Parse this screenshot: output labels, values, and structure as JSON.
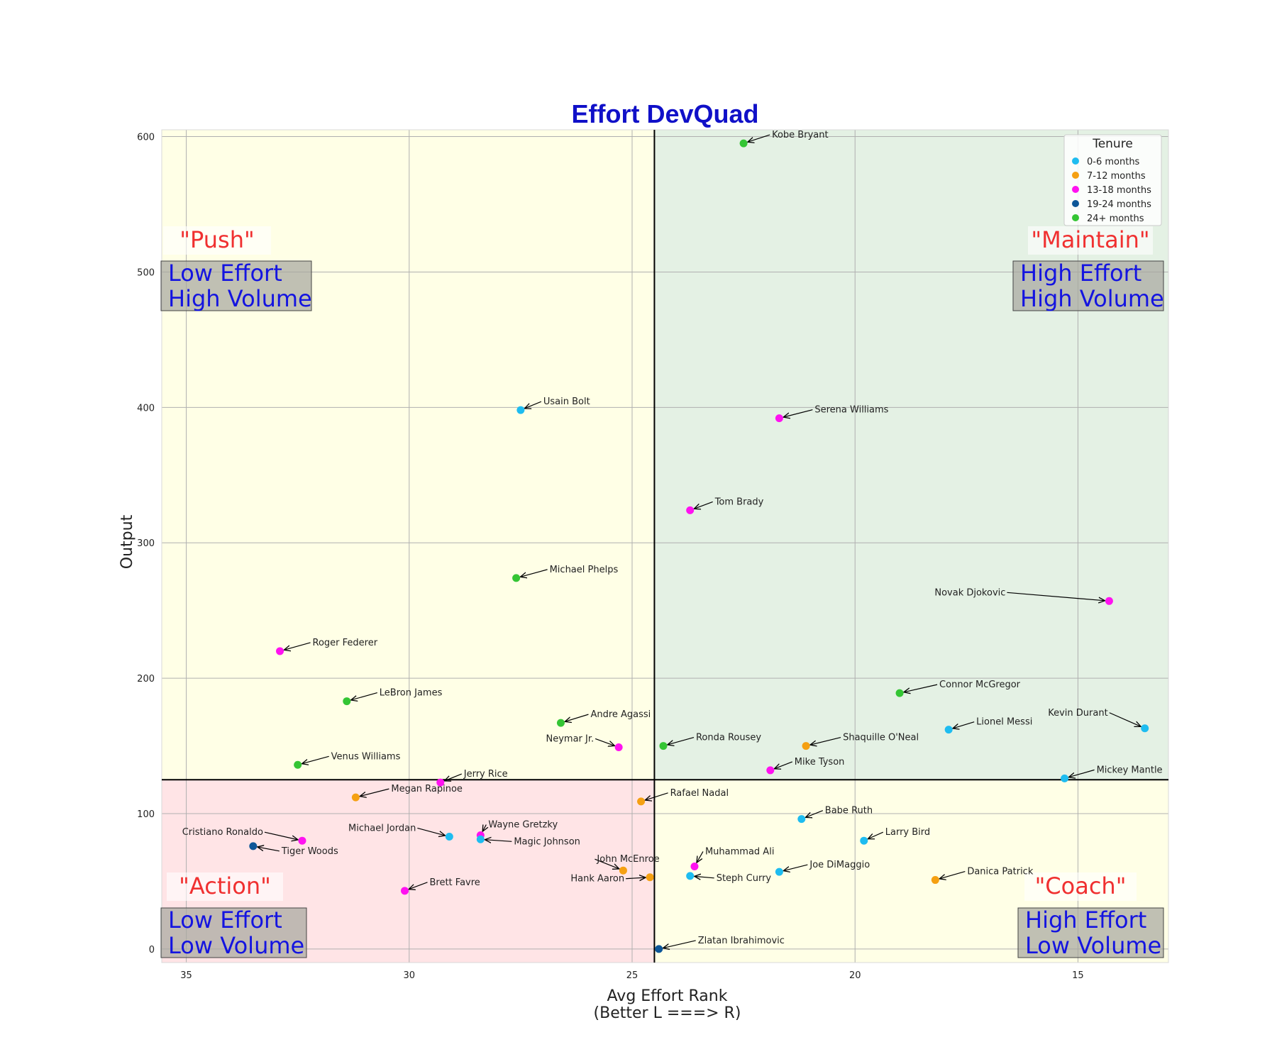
{
  "chart_data": {
    "type": "scatter",
    "title": "Effort DevQuad",
    "xlabel": "Avg Effort Rank\n(Better L ===> R)",
    "ylabel": "Output",
    "xlim": [
      35.55,
      12.97
    ],
    "ylim": [
      -10,
      605
    ],
    "x_inverted": true,
    "xticks": [
      35,
      30,
      25,
      20,
      15
    ],
    "yticks": [
      0,
      100,
      200,
      300,
      400,
      500,
      600
    ],
    "grid": true,
    "divider_x": 24.5,
    "divider_y": 125,
    "legend": {
      "title": "Tenure",
      "placement": "top-right",
      "entries": [
        {
          "label": "0-6 months",
          "color": "#1ebcf0"
        },
        {
          "label": "7-12 months",
          "color": "#f5a012"
        },
        {
          "label": "13-18 months",
          "color": "#ff12f0"
        },
        {
          "label": "19-24 months",
          "color": "#0d5698"
        },
        {
          "label": "24+ months",
          "color": "#34c534"
        }
      ]
    },
    "quadrants": [
      {
        "name": "top-left",
        "label": "\"Push\"",
        "desc": [
          "Low Effort",
          "High Volume"
        ],
        "fill": "#ffffe6"
      },
      {
        "name": "top-right",
        "label": "\"Maintain\"",
        "desc": [
          "High Effort",
          "High Volume"
        ],
        "fill": "#e4f1e4"
      },
      {
        "name": "bottom-left",
        "label": "\"Action\"",
        "desc": [
          "Low Effort",
          "Low Volume"
        ],
        "fill": "#ffe4e6"
      },
      {
        "name": "bottom-right",
        "label": "\"Coach\"",
        "desc": [
          "High Effort",
          "Low Volume"
        ],
        "fill": "#ffffe6"
      }
    ],
    "points": [
      {
        "name": "Kobe Bryant",
        "x": 22.5,
        "y": 595,
        "tenure": 4
      },
      {
        "name": "Usain Bolt",
        "x": 27.5,
        "y": 398,
        "tenure": 0
      },
      {
        "name": "Serena Williams",
        "x": 21.7,
        "y": 392,
        "tenure": 2
      },
      {
        "name": "Tom Brady",
        "x": 23.7,
        "y": 324,
        "tenure": 2
      },
      {
        "name": "Michael Phelps",
        "x": 27.6,
        "y": 274,
        "tenure": 4
      },
      {
        "name": "Novak Djokovic",
        "x": 14.3,
        "y": 257,
        "tenure": 2
      },
      {
        "name": "Roger Federer",
        "x": 32.9,
        "y": 220,
        "tenure": 2
      },
      {
        "name": "Connor McGregor",
        "x": 19.0,
        "y": 189,
        "tenure": 4
      },
      {
        "name": "LeBron James",
        "x": 31.4,
        "y": 183,
        "tenure": 4
      },
      {
        "name": "Andre Agassi",
        "x": 26.6,
        "y": 167,
        "tenure": 4
      },
      {
        "name": "Kevin Durant",
        "x": 13.5,
        "y": 163,
        "tenure": 0
      },
      {
        "name": "Lionel Messi",
        "x": 17.9,
        "y": 162,
        "tenure": 0
      },
      {
        "name": "Neymar Jr.",
        "x": 25.3,
        "y": 149,
        "tenure": 2
      },
      {
        "name": "Ronda Rousey",
        "x": 24.3,
        "y": 150,
        "tenure": 4
      },
      {
        "name": "Shaquille O'Neal",
        "x": 21.1,
        "y": 150,
        "tenure": 1
      },
      {
        "name": "Venus Williams",
        "x": 32.5,
        "y": 136,
        "tenure": 4
      },
      {
        "name": "Mike Tyson",
        "x": 21.9,
        "y": 132,
        "tenure": 2
      },
      {
        "name": "Mickey Mantle",
        "x": 15.3,
        "y": 126,
        "tenure": 0
      },
      {
        "name": "Jerry Rice",
        "x": 29.3,
        "y": 123,
        "tenure": 2
      },
      {
        "name": "Megan Rapinoe",
        "x": 31.2,
        "y": 112,
        "tenure": 1
      },
      {
        "name": "Rafael Nadal",
        "x": 24.8,
        "y": 109,
        "tenure": 1
      },
      {
        "name": "Babe Ruth",
        "x": 21.2,
        "y": 96,
        "tenure": 0
      },
      {
        "name": "Wayne Gretzky",
        "x": 28.4,
        "y": 84,
        "tenure": 2
      },
      {
        "name": "Michael Jordan",
        "x": 29.1,
        "y": 83,
        "tenure": 0
      },
      {
        "name": "Magic Johnson",
        "x": 28.4,
        "y": 81,
        "tenure": 0
      },
      {
        "name": "Cristiano Ronaldo",
        "x": 32.4,
        "y": 80,
        "tenure": 2
      },
      {
        "name": "Larry Bird",
        "x": 19.8,
        "y": 80,
        "tenure": 0
      },
      {
        "name": "Tiger Woods",
        "x": 33.5,
        "y": 76,
        "tenure": 3
      },
      {
        "name": "Muhammad Ali",
        "x": 23.6,
        "y": 61,
        "tenure": 2
      },
      {
        "name": "John McEnroe",
        "x": 25.2,
        "y": 58,
        "tenure": 1
      },
      {
        "name": "Joe DiMaggio",
        "x": 21.7,
        "y": 57,
        "tenure": 0
      },
      {
        "name": "Steph Curry",
        "x": 23.7,
        "y": 54,
        "tenure": 0
      },
      {
        "name": "Hank Aaron",
        "x": 24.6,
        "y": 53,
        "tenure": 1
      },
      {
        "name": "Danica Patrick",
        "x": 18.2,
        "y": 51,
        "tenure": 1
      },
      {
        "name": "Brett Favre",
        "x": 30.1,
        "y": 43,
        "tenure": 2
      },
      {
        "name": "Zlatan Ibrahimovic",
        "x": 24.4,
        "y": 0,
        "tenure": 3
      }
    ]
  }
}
